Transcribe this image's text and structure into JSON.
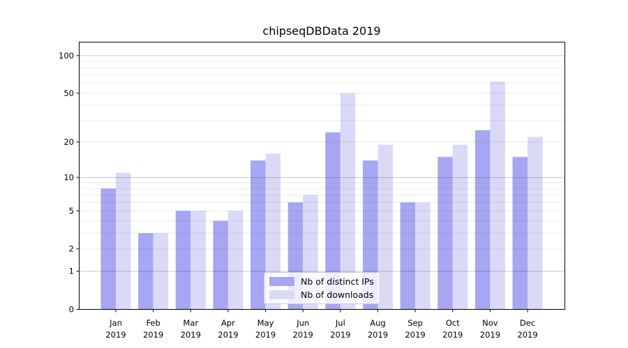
{
  "title": "chipseqDBData 2019",
  "chart_data": {
    "type": "bar",
    "title": "chipseqDBData 2019",
    "categories": [
      "Jan",
      "Feb",
      "Mar",
      "Apr",
      "May",
      "Jun",
      "Jul",
      "Aug",
      "Sep",
      "Oct",
      "Nov",
      "Dec"
    ],
    "x_axis_year": "2019",
    "series": [
      {
        "name": "Nb of distinct IPs",
        "color": "#a6a6f3",
        "values": [
          8,
          3,
          5,
          4,
          14,
          6,
          24,
          14,
          6,
          15,
          25,
          15
        ]
      },
      {
        "name": "Nb of downloads",
        "color": "#dadaf8",
        "values": [
          11,
          3,
          5,
          5,
          16,
          7,
          50,
          19,
          6,
          19,
          62,
          22
        ]
      }
    ],
    "yscale": "symlog ln(1+x)",
    "ylim": [
      0,
      128
    ],
    "y_ticks": [
      0,
      1,
      2,
      5,
      10,
      20,
      50,
      100
    ],
    "y_major_gridlines": [
      1,
      10,
      100
    ],
    "y_minor_gridlines": [
      2,
      3,
      4,
      5,
      6,
      7,
      8,
      9,
      20,
      30,
      40,
      50,
      60,
      70,
      80,
      90
    ],
    "grid": "horizontal",
    "legend_position": "lower center"
  },
  "colors": {
    "background": "#ffffff",
    "spine": "#000000",
    "tick_label": "#000000",
    "major_grid": "rgba(0,0,0,0.22)",
    "minor_grid": "rgba(0,0,0,0.08)",
    "legend_bg": "rgba(255,255,255,0.8)",
    "legend_border": "#cccccc"
  }
}
